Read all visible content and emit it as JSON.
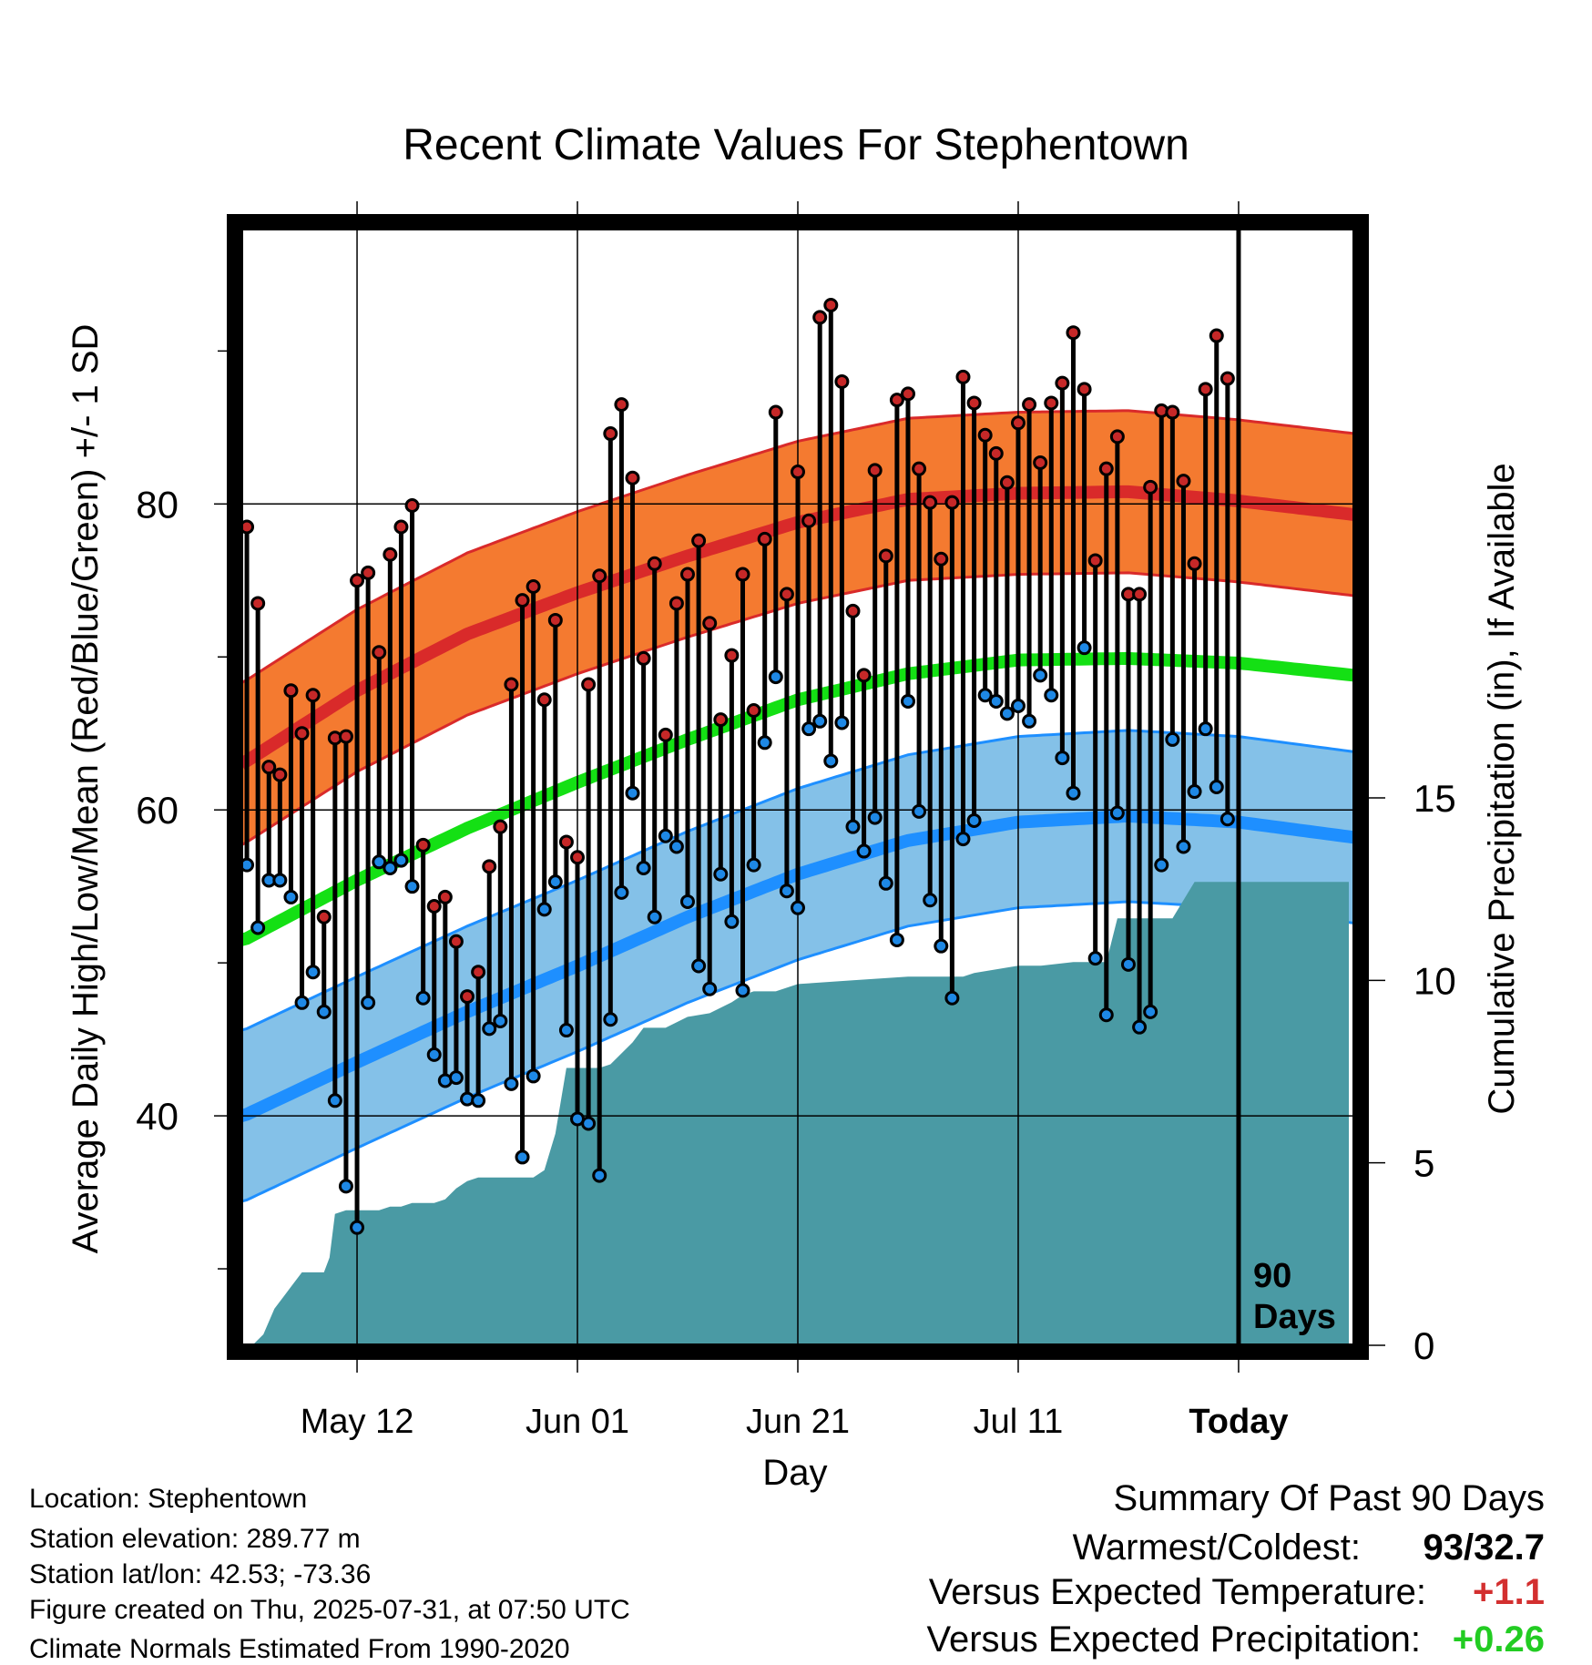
{
  "title": "Recent Climate Values For Stephentown",
  "y_left_label": "Average Daily High/Low/Mean (Red/Blue/Green) +/- 1 SD",
  "y_right_label": "Cumulative Precipitation (in), If Available",
  "x_label": "Day",
  "overlay": {
    "line1": "90",
    "line2": "Days"
  },
  "info": {
    "location": "Location: Stephentown",
    "elevation": "Station elevation: 289.77 m",
    "latlon": "Station lat/lon: 42.53; -73.36",
    "created": "Figure created on Thu, 2025-07-31, at 07:50 UTC",
    "normals": "Climate Normals Estimated From 1990-2020"
  },
  "summary": {
    "heading": "Summary Of Past 90 Days",
    "warmest_coldest_label": "Warmest/Coldest:",
    "warmest_coldest_value": "93/32.7",
    "temp_label": "Versus Expected Temperature:",
    "temp_value": "+1.1",
    "precip_label": "Versus Expected Precipitation:",
    "precip_value": "+0.26"
  },
  "colors": {
    "high_band": "#f47a30",
    "high_line": "#d92a2a",
    "low_band": "#84c1e8",
    "low_line": "#1e8fff",
    "mean_line": "#14e014",
    "precip": "#4a9aa4",
    "high_dot": "#c62828",
    "low_dot": "#1e88e5",
    "temp_value": "#d32f2f",
    "precip_value": "#22cc22"
  },
  "chart_data": {
    "type": "line",
    "x_ticks": [
      {
        "label": "May 12",
        "day": 10
      },
      {
        "label": "Jun 01",
        "day": 30
      },
      {
        "label": "Jun 21",
        "day": 50
      },
      {
        "label": "Jul 11",
        "day": 70
      },
      {
        "label": "Today",
        "day": 90
      }
    ],
    "y_left": {
      "ylim": [
        25,
        98
      ],
      "ticks": [
        40,
        60,
        80
      ],
      "minor_ticks": [
        30,
        50,
        70,
        90
      ]
    },
    "y_right": {
      "ylim": [
        0,
        30.6
      ],
      "ticks": [
        0,
        5,
        10,
        15
      ]
    },
    "xlim": [
      -0.5,
      100.5
    ],
    "today_day": 90,
    "daily_highs": [
      78.5,
      73.5,
      62.8,
      62.3,
      67.8,
      65,
      67.5,
      53,
      64.7,
      64.8,
      75,
      75.5,
      70.3,
      76.7,
      78.5,
      79.9,
      57.7,
      53.7,
      54.3,
      51.4,
      47.8,
      49.4,
      56.3,
      58.9,
      68.2,
      73.7,
      74.6,
      67.2,
      72.4,
      57.9,
      56.9,
      68.2,
      75.3,
      84.6,
      86.5,
      81.7,
      69.9,
      76.1,
      64.9,
      73.5,
      75.4,
      77.6,
      72.2,
      65.9,
      70.1,
      75.4,
      66.5,
      77.7,
      86,
      74.1,
      82.1,
      78.9,
      92.2,
      93,
      88,
      73,
      68.8,
      82.2,
      76.6,
      86.8,
      87.2,
      82.3,
      80.1,
      76.4,
      80.1,
      88.3,
      86.6,
      84.5,
      83.3,
      81.4,
      85.3,
      86.5,
      82.7,
      86.6,
      87.9,
      91.2,
      87.5,
      76.3,
      82.3,
      84.4,
      74.1,
      74.1,
      81.1,
      86.1,
      86,
      81.5,
      76.1,
      87.5,
      91,
      88.2
    ],
    "daily_lows": [
      56.4,
      52.3,
      55.4,
      55.4,
      54.3,
      47.4,
      49.4,
      46.8,
      41,
      35.4,
      32.7,
      47.4,
      56.6,
      56.2,
      56.7,
      55,
      47.7,
      44,
      42.3,
      42.5,
      41.1,
      41,
      45.7,
      46.2,
      42.1,
      37.3,
      42.6,
      53.5,
      55.3,
      45.6,
      39.8,
      39.5,
      36.1,
      46.3,
      54.6,
      61.1,
      56.2,
      53,
      58.3,
      57.6,
      54,
      49.8,
      48.3,
      55.8,
      52.7,
      48.2,
      56.4,
      64.4,
      68.7,
      54.7,
      53.6,
      65.3,
      65.8,
      63.2,
      65.7,
      58.9,
      57.3,
      59.5,
      55.2,
      51.5,
      67.1,
      59.9,
      54.1,
      51.1,
      47.7,
      58.1,
      59.3,
      67.5,
      67.1,
      66.3,
      66.8,
      65.8,
      68.8,
      67.5,
      63.4,
      61.1,
      70.6,
      50.3,
      46.6,
      59.8,
      49.9,
      45.8,
      46.8,
      56.4,
      64.6,
      57.6,
      61.2,
      65.3,
      61.5,
      59.4
    ],
    "normal_high": {
      "days": [
        -0.5,
        0,
        10,
        20,
        30,
        40,
        50,
        60,
        70,
        80,
        90,
        100.5
      ],
      "values": [
        63,
        63.2,
        67.8,
        71.5,
        74.2,
        76.6,
        78.8,
        80.3,
        80.7,
        80.8,
        80.2,
        79.3
      ]
    },
    "normal_high_sd": 5.3,
    "normal_low": {
      "days": [
        -0.5,
        0,
        10,
        20,
        30,
        40,
        50,
        60,
        70,
        80,
        90,
        100.5
      ],
      "values": [
        40,
        40.1,
        43.5,
        46.8,
        49.8,
        53,
        55.8,
        58,
        59.2,
        59.6,
        59.2,
        58.2
      ]
    },
    "normal_low_sd": 5.6,
    "normal_mean": {
      "days": [
        -0.5,
        0,
        10,
        20,
        30,
        40,
        50,
        60,
        70,
        80,
        90,
        100.5
      ],
      "values": [
        51.5,
        51.6,
        55.4,
        58.8,
        61.8,
        64.6,
        67.2,
        68.9,
        69.8,
        69.9,
        69.6,
        68.8
      ]
    },
    "precip_cumulative": {
      "days": [
        0.5,
        1.5,
        2.5,
        3.5,
        4,
        5,
        6,
        7,
        7.5,
        8,
        9,
        10,
        12,
        13,
        14,
        15,
        16,
        17,
        18,
        19,
        20,
        21,
        22,
        23,
        24,
        25,
        26,
        27,
        28,
        29,
        30,
        31,
        32,
        33,
        34,
        35,
        36,
        38,
        40,
        42,
        44,
        45,
        46,
        48,
        50,
        55,
        60,
        65,
        66,
        68,
        70,
        72,
        75,
        78,
        79,
        80,
        82,
        84,
        85,
        86,
        90,
        95,
        100
      ],
      "values": [
        0,
        0.3,
        1,
        1.4,
        1.6,
        2,
        2,
        2,
        2.4,
        3.6,
        3.7,
        3.7,
        3.7,
        3.8,
        3.8,
        3.9,
        3.9,
        3.9,
        4,
        4.3,
        4.5,
        4.6,
        4.6,
        4.6,
        4.6,
        4.6,
        4.6,
        4.8,
        5.8,
        7.6,
        7.6,
        7.6,
        7.6,
        7.7,
        8,
        8.3,
        8.7,
        8.7,
        9,
        9.1,
        9.4,
        9.6,
        9.7,
        9.7,
        9.9,
        10,
        10.1,
        10.1,
        10.2,
        10.3,
        10.4,
        10.4,
        10.5,
        10.5,
        11.7,
        11.7,
        11.7,
        11.7,
        12.2,
        12.7,
        12.7,
        12.7,
        12.7
      ]
    }
  }
}
